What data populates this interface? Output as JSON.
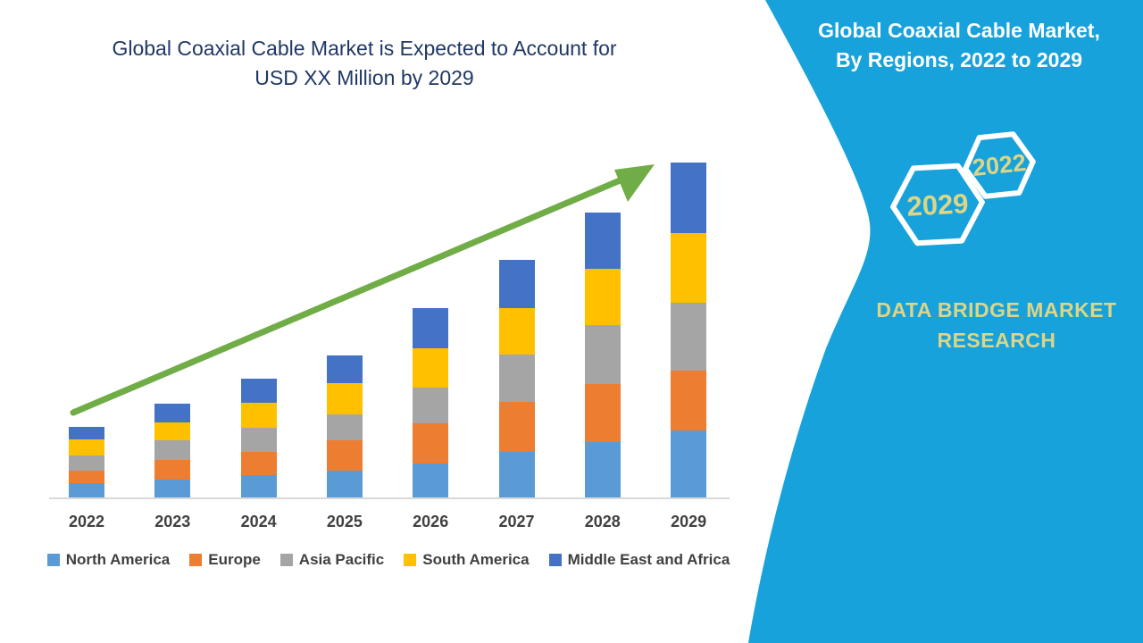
{
  "left": {
    "title_line1": "Global Coaxial Cable Market is Expected to Account for",
    "title_line2": "USD XX Million by 2029"
  },
  "panel": {
    "background_color": "#17A2DB",
    "accent_text_color": "#DCD588",
    "title_line1": "Global Coaxial Cable Market,",
    "title_line2": "By Regions, 2022 to 2029",
    "hexagon_back_label": "2022",
    "hexagon_front_label": "2029",
    "brand_line1": "DATA BRIDGE MARKET",
    "brand_line2": "RESEARCH"
  },
  "chart_data": {
    "type": "bar",
    "stacked": true,
    "title": "Global Coaxial Cable Market is Expected to Account for USD XX Million by 2029",
    "xlabel": "",
    "ylabel": "",
    "units": "relative (no value axis shown on chart)",
    "ylim": [
      0,
      400
    ],
    "grid": false,
    "legend_position": "bottom",
    "categories": [
      "2022",
      "2023",
      "2024",
      "2025",
      "2026",
      "2027",
      "2028",
      "2029"
    ],
    "series": [
      {
        "name": "North America",
        "color": "#5B9BD5",
        "values": [
          16,
          20,
          25,
          30,
          38,
          51,
          62,
          75
        ]
      },
      {
        "name": "Europe",
        "color": "#ED7D31",
        "values": [
          14,
          22,
          26,
          34,
          45,
          56,
          65,
          67
        ]
      },
      {
        "name": "Asia Pacific",
        "color": "#A5A5A5",
        "values": [
          17,
          22,
          27,
          29,
          40,
          53,
          66,
          76
        ]
      },
      {
        "name": "South America",
        "color": "#FFC000",
        "values": [
          18,
          20,
          28,
          35,
          44,
          52,
          63,
          78
        ]
      },
      {
        "name": "Middle East and Africa",
        "color": "#4472C4",
        "values": [
          14,
          21,
          27,
          31,
          45,
          54,
          63,
          79
        ]
      }
    ],
    "stack_totals": [
      79,
      105,
      133,
      159,
      212,
      266,
      319,
      375
    ],
    "annotations": [
      {
        "type": "trend-arrow",
        "from": "2022",
        "to": "2029",
        "color": "#70AD47",
        "meaning": "upward growth trend"
      }
    ],
    "axis_line_color": "#d9d9d9",
    "tick_label_color": "#404040"
  }
}
